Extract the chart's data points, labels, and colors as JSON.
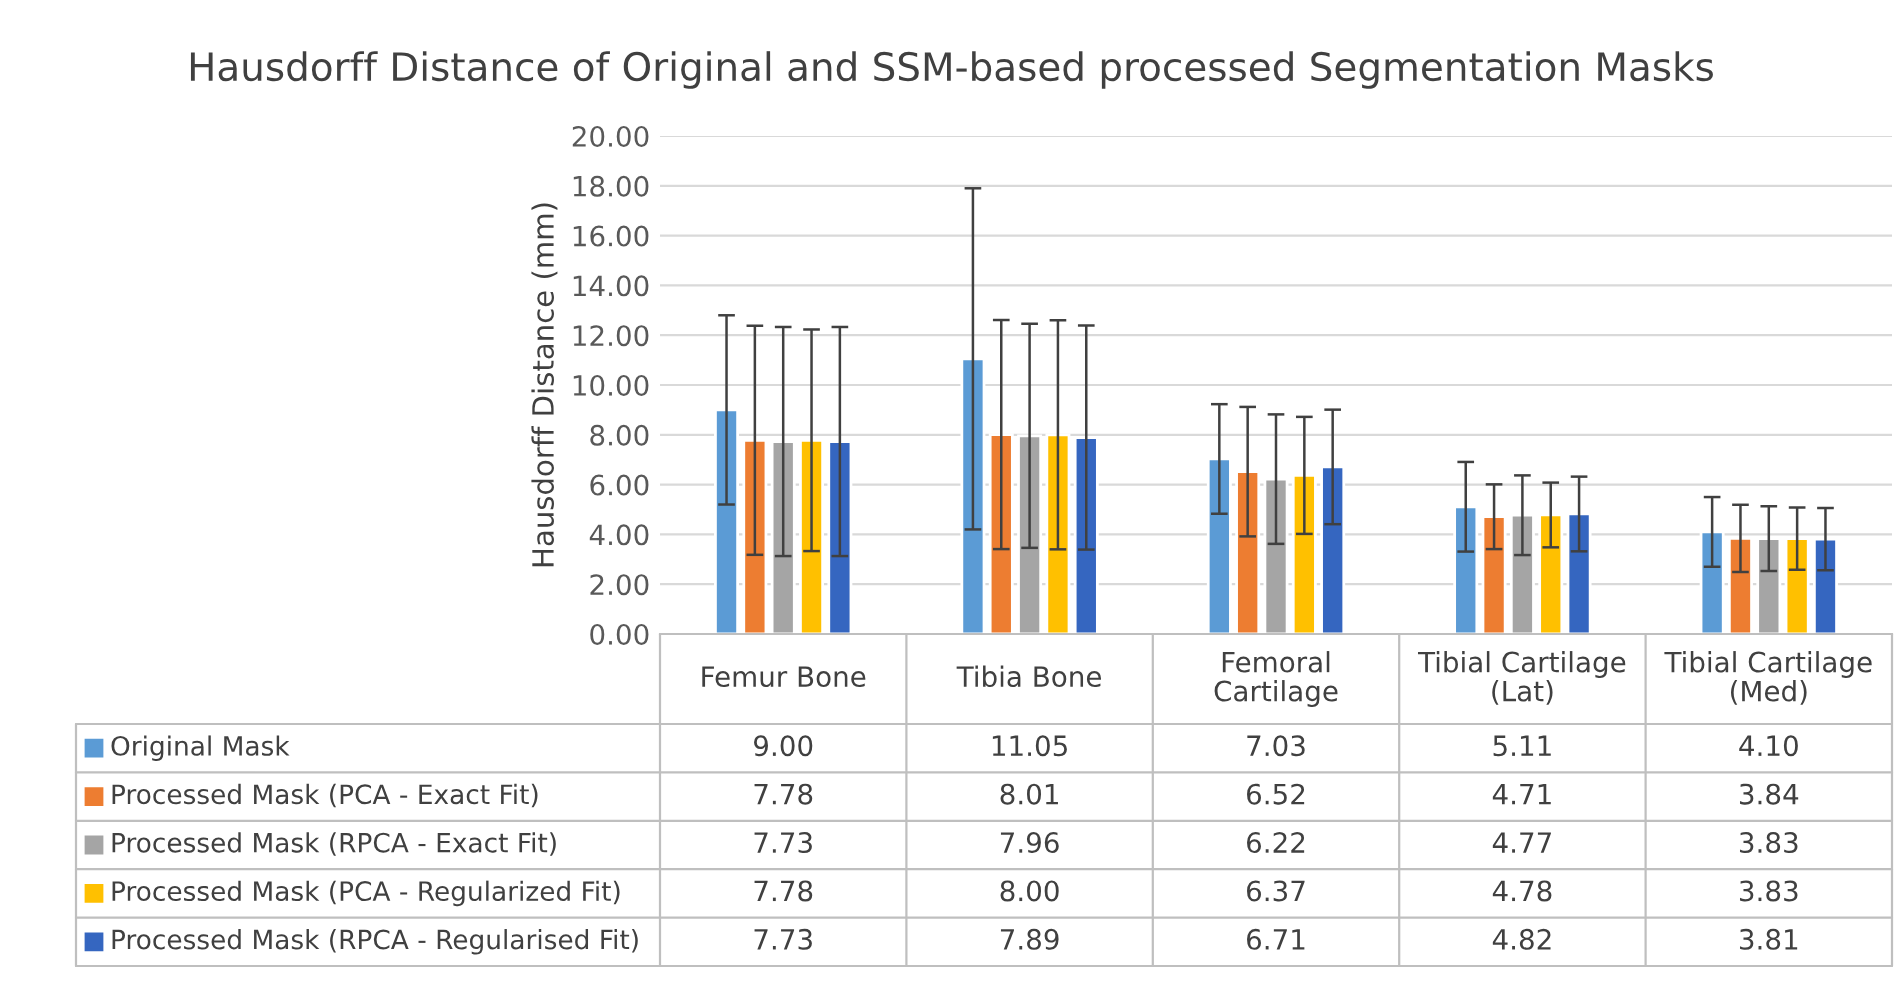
{
  "chart_data": {
    "type": "bar",
    "title": "Hausdorff Distance of Original and SSM-based processed Segmentation Masks",
    "ylabel": "Hausdorff Distance (mm)",
    "categories": [
      "Femur Bone",
      "Tibia Bone",
      "Femoral\nCartilage",
      "Tibial Cartilage\n(Lat)",
      "Tibial Cartilage\n(Med)"
    ],
    "series": [
      {
        "name": "Original Mask",
        "color": "#5b9bd5",
        "values": [
          9.0,
          11.05,
          7.03,
          5.11,
          4.1
        ],
        "errors": [
          3.8,
          6.85,
          2.2,
          1.8,
          1.4
        ],
        "value_labels": [
          "9.00",
          "11.05",
          "7.03",
          "5.11",
          "4.10"
        ]
      },
      {
        "name": "Processed Mask (PCA - Exact Fit)",
        "color": "#ed7d31",
        "values": [
          7.78,
          8.01,
          6.52,
          4.71,
          3.84
        ],
        "errors": [
          4.6,
          4.6,
          2.6,
          1.3,
          1.35
        ],
        "value_labels": [
          "7.78",
          "8.01",
          "6.52",
          "4.71",
          "3.84"
        ]
      },
      {
        "name": "Processed Mask (RPCA - Exact Fit)",
        "color": "#a5a5a5",
        "values": [
          7.73,
          7.96,
          6.22,
          4.77,
          3.83
        ],
        "errors": [
          4.6,
          4.5,
          2.6,
          1.6,
          1.3
        ],
        "value_labels": [
          "7.73",
          "7.96",
          "6.22",
          "4.77",
          "3.83"
        ]
      },
      {
        "name": "Processed Mask (PCA - Regularized Fit)",
        "color": "#ffc000",
        "values": [
          7.78,
          8.0,
          6.37,
          4.78,
          3.83
        ],
        "errors": [
          4.45,
          4.6,
          2.35,
          1.3,
          1.25
        ],
        "value_labels": [
          "7.78",
          "8.00",
          "6.37",
          "4.78",
          "3.83"
        ]
      },
      {
        "name": "Processed Mask (RPCA - Regularised Fit)",
        "color": "#3566c0",
        "values": [
          7.73,
          7.89,
          6.71,
          4.82,
          3.81
        ],
        "errors": [
          4.6,
          4.5,
          2.3,
          1.5,
          1.25
        ],
        "value_labels": [
          "7.73",
          "7.89",
          "6.71",
          "4.82",
          "3.81"
        ]
      }
    ],
    "ylim": [
      0,
      20
    ],
    "yticks": [
      {
        "value": 0,
        "label": "0.00"
      },
      {
        "value": 2,
        "label": "2.00"
      },
      {
        "value": 4,
        "label": "4.00"
      },
      {
        "value": 6,
        "label": "6.00"
      },
      {
        "value": 8,
        "label": "8.00"
      },
      {
        "value": 10,
        "label": "10.00"
      },
      {
        "value": 12,
        "label": "12.00"
      },
      {
        "value": 14,
        "label": "14.00"
      },
      {
        "value": 16,
        "label": "16.00"
      },
      {
        "value": 18,
        "label": "18.00"
      },
      {
        "value": 20,
        "label": "20.00"
      }
    ],
    "grid": "y",
    "legend": "bottom"
  }
}
